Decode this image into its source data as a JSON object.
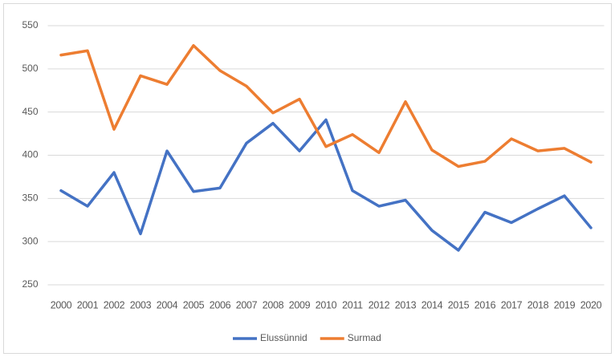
{
  "chart_data": {
    "type": "line",
    "categories": [
      "2000",
      "2001",
      "2002",
      "2003",
      "2004",
      "2005",
      "2006",
      "2007",
      "2008",
      "2009",
      "2010",
      "2011",
      "2012",
      "2013",
      "2014",
      "2015",
      "2016",
      "2017",
      "2018",
      "2019",
      "2020"
    ],
    "series": [
      {
        "name": "Elussünnid",
        "color": "#4472c4",
        "values": [
          359,
          341,
          380,
          309,
          405,
          358,
          362,
          414,
          437,
          405,
          441,
          359,
          341,
          348,
          313,
          290,
          334,
          322,
          338,
          353,
          316
        ]
      },
      {
        "name": "Surmad",
        "color": "#ed7d31",
        "values": [
          516,
          521,
          430,
          492,
          482,
          527,
          498,
          480,
          449,
          465,
          410,
          424,
          403,
          462,
          406,
          387,
          393,
          419,
          405,
          408,
          392
        ]
      }
    ],
    "ylim": [
      250,
      550
    ],
    "yticks": [
      250,
      300,
      350,
      400,
      450,
      500,
      550
    ],
    "grid": true,
    "legend": "bottom"
  }
}
